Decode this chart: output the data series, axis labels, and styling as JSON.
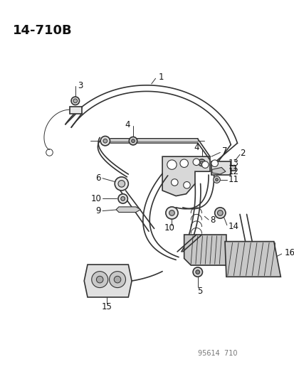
{
  "title": "14-710B",
  "watermark": "95614  710",
  "bg_color": "#ffffff",
  "title_fontsize": 13,
  "label_fontsize": 8.5,
  "cable_color": "#333333",
  "line_width": 1.2,
  "thin_line": 0.7
}
